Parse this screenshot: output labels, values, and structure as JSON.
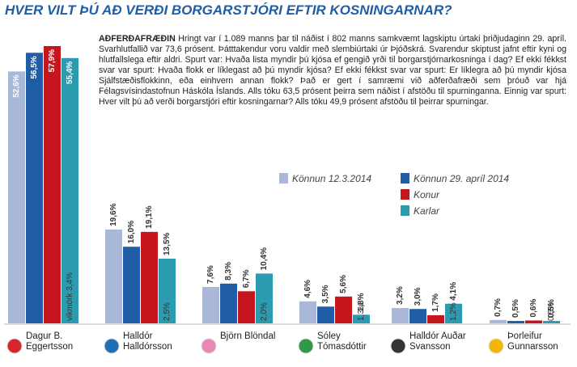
{
  "chart_data": {
    "type": "bar",
    "title": "HVER VILT ÞÚ AÐ VERÐI BORGARSTJÓRI EFTIR KOSNINGARNAR?",
    "note_heading": "AÐFERÐAFRÆÐIN",
    "note": "Hringt var í 1.089 manns þar til náðist í 802 manns samkvæmt lagskiptu úrtaki þriðjudaginn 29. apríl. Svarhlutfallið var 73,6 prósent. Þátttakendur voru valdir með slembiúrtaki úr Þjóðskrá. Svarendur skiptust jafnt eftir kyni og hlutfallslega eftir aldri. Spurt var: Hvaða lista myndir þú kjósa ef gengið yrði til borgarstjórnarkosninga í dag? Ef ekki fékkst svar var spurt: Hvaða flokk er líklegast að þú myndir kjósa? Ef ekki fékkst svar var spurt: Er líklegra að þú myndir kjósa Sjálfstæðisflokkinn, eða einhvern annan flokk? Það er gert í samræmi við aðferðafræði sem þróuð var hjá Félagsvísindastofnun Háskóla Íslands. Alls tóku 63,5 prósent þeirra sem náðist í afstöðu til spurninganna. Einnig var spurt: Hver vilt þú að verði borgarstjóri eftir kosningarnar? Alls tóku 49,9 prósent afstöðu til þeirrar spurningar.",
    "categories": [
      "Dagur B. Eggertsson",
      "Halldór Halldórsson",
      "Björn Blöndal",
      "Sóley Tómasdóttir",
      "Halldór Auðar Svansson",
      "Þorleifur Gunnarsson"
    ],
    "margin_labels": [
      "vikmörk 3,4%",
      "2,5%",
      "2,0%",
      "1,3%",
      "1,2%",
      "0,5%"
    ],
    "series": [
      {
        "name": "Könnun 12.3.2014",
        "color": "#a9b7d9",
        "values": [
          52.6,
          19.6,
          7.6,
          4.6,
          3.2,
          0.7
        ],
        "value_labels": [
          "52,6%",
          "19,6%",
          "7,6%",
          "4,6%",
          "3,2%",
          "0,7%"
        ]
      },
      {
        "name": "Könnun 29. apríl 2014",
        "color": "#1f5ea6",
        "values": [
          56.5,
          16.0,
          8.3,
          3.5,
          3.0,
          0.5
        ],
        "value_labels": [
          "56,5%",
          "16,0%",
          "8,3%",
          "3,5%",
          "3,0%",
          "0,5%"
        ]
      },
      {
        "name": "Konur",
        "color": "#c4161c",
        "values": [
          57.9,
          19.1,
          6.7,
          5.6,
          1.7,
          0.6
        ],
        "value_labels": [
          "57,9%",
          "19,1%",
          "6,7%",
          "5,6%",
          "1,7%",
          "0,6%"
        ]
      },
      {
        "name": "Karlar",
        "color": "#2b9cb0",
        "values": [
          55.4,
          13.5,
          10.4,
          1.8,
          4.1,
          0.5
        ],
        "value_labels": [
          "55,4%",
          "13,5%",
          "10,4%",
          "1,8%",
          "4,1%",
          "0,5%"
        ]
      }
    ]
  }
}
